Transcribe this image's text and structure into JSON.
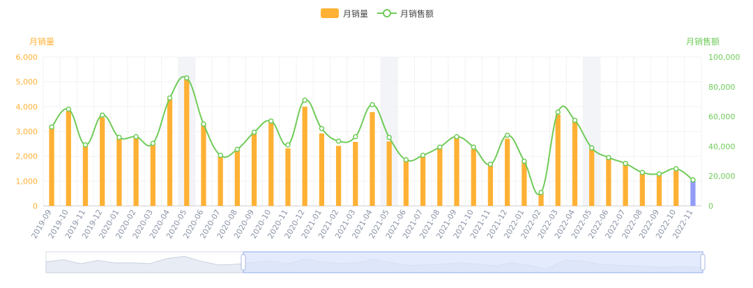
{
  "colors": {
    "bar": "#ffb135",
    "bar_highlight": "#939cf5",
    "line": "#6fcb58",
    "left_axis": "#ffb135",
    "right_axis": "#6fcb58",
    "grid": "#f2f2f2",
    "shade": "#f2f4f8",
    "zoom_fill": "#dbe4fb",
    "zoom_line": "#8fa9ee"
  },
  "legend": {
    "bar_label": "月销量",
    "line_label": "月销售额",
    "bar_icon": "rounded-rect-icon",
    "line_icon": "line-circle-icon"
  },
  "axes": {
    "left_title": "月销量",
    "right_title": "月销售额",
    "left_ticks": [
      "0",
      "1,000",
      "2,000",
      "3,000",
      "4,000",
      "5,000",
      "6,000"
    ],
    "right_ticks": [
      "0",
      "20,000",
      "40,000",
      "60,000",
      "80,000",
      "100,000"
    ]
  },
  "chart_data": {
    "type": "bar",
    "categories": [
      "2019-09",
      "2019-10",
      "2019-11",
      "2019-12",
      "2020-01",
      "2020-02",
      "2020-03",
      "2020-04",
      "2020-05",
      "2020-06",
      "2020-07",
      "2020-08",
      "2020-09",
      "2020-10",
      "2020-11",
      "2020-12",
      "2021-01",
      "2021-02",
      "2021-03",
      "2021-04",
      "2021-05",
      "2021-06",
      "2021-07",
      "2021-08",
      "2021-09",
      "2021-10",
      "2021-11",
      "2021-12",
      "2022-01",
      "2022-02",
      "2022-03",
      "2022-04",
      "2022-05",
      "2022-06",
      "2022-07",
      "2022-08",
      "2022-09",
      "2022-10",
      "2022-11"
    ],
    "series": [
      {
        "name": "月销量",
        "type": "bar",
        "axis": "left",
        "values": [
          3150,
          3820,
          2450,
          3560,
          2750,
          2800,
          2480,
          4300,
          5100,
          3270,
          2020,
          2300,
          2980,
          3400,
          2320,
          4000,
          2920,
          2420,
          2580,
          3780,
          2600,
          1870,
          1970,
          2330,
          2770,
          2290,
          1670,
          2710,
          1780,
          520,
          3680,
          3440,
          2300,
          1900,
          1750,
          1330,
          1250,
          1420,
          1000
        ]
      },
      {
        "name": "月销售额",
        "type": "line",
        "axis": "right",
        "values": [
          53000,
          65000,
          41000,
          61000,
          46000,
          46500,
          42000,
          72500,
          86000,
          55000,
          34000,
          38000,
          49500,
          57000,
          41000,
          71000,
          52000,
          43500,
          46500,
          68000,
          46000,
          31000,
          34000,
          39500,
          46500,
          39500,
          28000,
          47500,
          30000,
          9000,
          63000,
          57500,
          39000,
          32500,
          28500,
          22500,
          21500,
          25000,
          17500
        ]
      }
    ],
    "ylim_left": [
      0,
      6000
    ],
    "ylim_right": [
      0,
      100000
    ],
    "highlighted_index": 38,
    "shaded_categories": [
      "2020-05",
      "2021-05",
      "2022-05"
    ],
    "grid": true,
    "legend_position": "top-center",
    "dataZoom": {
      "visible_range": "2019-09 to 2022-11",
      "has_slider": true
    }
  }
}
